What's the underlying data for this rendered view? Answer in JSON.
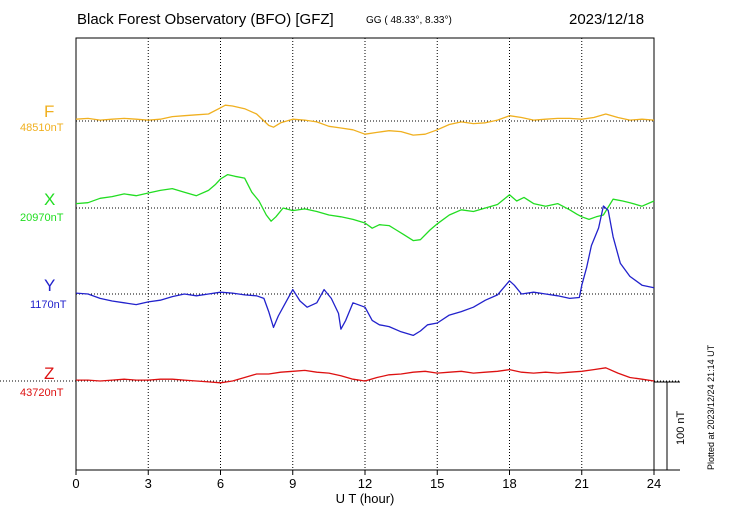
{
  "header": {
    "title": "Black Forest Observatory (BFO)  [GFZ]",
    "coords": "GG ( 48.33°,   8.33°)",
    "date": "2023/12/18"
  },
  "plotted_note": "Plotted at 2023/12/24 21:14 UT",
  "chart_data": {
    "type": "line",
    "xlabel": "U T (hour)",
    "xlim": [
      0,
      24
    ],
    "x_ticks": [
      0,
      3,
      6,
      9,
      12,
      15,
      18,
      21,
      24
    ],
    "x_tick_labels": [
      "0",
      "3",
      "6",
      "9",
      "12",
      "15",
      "18",
      "21",
      "24"
    ],
    "scale_bar_label": "100 nT",
    "scale_bar_nT": 100,
    "grid": true,
    "series": [
      {
        "name": "F",
        "baseline_label": "48510nT",
        "baseline_nT": 48510,
        "color": "#f0b020",
        "x": [
          0,
          0.5,
          1,
          1.5,
          2,
          2.5,
          3,
          3.5,
          4,
          4.5,
          5,
          5.5,
          6,
          6.2,
          6.5,
          7,
          7.5,
          8,
          8.2,
          8.5,
          9,
          9.5,
          10,
          10.5,
          11,
          11.5,
          12,
          12.5,
          13,
          13.5,
          14,
          14.5,
          15,
          15.5,
          16,
          16.5,
          17,
          17.5,
          18,
          18.5,
          19,
          19.5,
          20,
          20.5,
          21,
          21.5,
          22,
          22.5,
          23,
          23.5,
          24
        ],
        "y": [
          48512,
          48513,
          48511,
          48512,
          48513,
          48512,
          48511,
          48512,
          48515,
          48516,
          48517,
          48518,
          48525,
          48528,
          48527,
          48524,
          48518,
          48505,
          48503,
          48508,
          48512,
          48511,
          48509,
          48504,
          48502,
          48500,
          48495,
          48497,
          48499,
          48498,
          48494,
          48495,
          48500,
          48506,
          48509,
          48507,
          48508,
          48511,
          48516,
          48514,
          48511,
          48512,
          48513,
          48513,
          48512,
          48514,
          48518,
          48514,
          48511,
          48512,
          48511
        ]
      },
      {
        "name": "X",
        "baseline_label": "20970nT",
        "baseline_nT": 20970,
        "color": "#22dd22",
        "x": [
          0,
          0.5,
          1,
          1.5,
          2,
          2.5,
          3,
          3.5,
          4,
          4.5,
          5,
          5.5,
          5.8,
          6,
          6.3,
          6.6,
          7,
          7.3,
          7.6,
          7.9,
          8.1,
          8.3,
          8.6,
          9,
          9.5,
          10,
          10.5,
          11,
          11.5,
          12,
          12.3,
          12.6,
          13,
          13.3,
          13.6,
          14,
          14.3,
          14.7,
          15,
          15.5,
          16,
          16.5,
          17,
          17.5,
          18,
          18.3,
          18.6,
          19,
          19.5,
          20,
          20.5,
          20.8,
          21,
          21.3,
          21.6,
          21.9,
          22.3,
          22.7,
          23,
          23.5,
          24
        ],
        "y": [
          20975,
          20976,
          20981,
          20983,
          20986,
          20984,
          20987,
          20990,
          20992,
          20988,
          20984,
          20990,
          20997,
          21003,
          21008,
          21006,
          21004,
          20988,
          20978,
          20962,
          20955,
          20960,
          20970,
          20967,
          20969,
          20966,
          20962,
          20960,
          20957,
          20953,
          20947,
          20951,
          20950,
          20945,
          20940,
          20933,
          20934,
          20945,
          20952,
          20962,
          20968,
          20966,
          20970,
          20974,
          20985,
          20978,
          20982,
          20975,
          20972,
          20975,
          20968,
          20963,
          20960,
          20957,
          20960,
          20962,
          20980,
          20978,
          20976,
          20972,
          20978
        ]
      },
      {
        "name": "Y",
        "baseline_label": "1170nT",
        "baseline_nT": 1170,
        "color": "#2222cc",
        "x": [
          0,
          0.5,
          1,
          1.5,
          2,
          2.5,
          3,
          3.5,
          4,
          4.5,
          5,
          5.5,
          6,
          6.5,
          7,
          7.5,
          7.8,
          8,
          8.2,
          8.4,
          8.7,
          9,
          9.3,
          9.6,
          10,
          10.3,
          10.6,
          10.9,
          11,
          11.2,
          11.5,
          12,
          12.3,
          12.6,
          13,
          13.5,
          14,
          14.3,
          14.6,
          15,
          15.5,
          16,
          16.5,
          17,
          17.5,
          18,
          18.2,
          18.5,
          19,
          19.5,
          20,
          20.5,
          20.9,
          21,
          21.2,
          21.4,
          21.7,
          21.9,
          22.1,
          22.3,
          22.6,
          23,
          23.5,
          24
        ],
        "y": [
          1171,
          1170,
          1165,
          1162,
          1160,
          1158,
          1161,
          1163,
          1167,
          1170,
          1168,
          1170,
          1172,
          1171,
          1169,
          1168,
          1165,
          1150,
          1132,
          1145,
          1160,
          1175,
          1162,
          1155,
          1160,
          1175,
          1165,
          1148,
          1130,
          1140,
          1160,
          1155,
          1140,
          1135,
          1133,
          1127,
          1123,
          1128,
          1135,
          1137,
          1146,
          1150,
          1155,
          1163,
          1169,
          1185,
          1180,
          1170,
          1172,
          1170,
          1168,
          1165,
          1166,
          1180,
          1200,
          1225,
          1245,
          1270,
          1265,
          1235,
          1205,
          1190,
          1180,
          1177
        ]
      },
      {
        "name": "Z",
        "baseline_label": "43720nT",
        "baseline_nT": 43720,
        "color": "#dd1111",
        "x": [
          0,
          0.5,
          1,
          1.5,
          2,
          2.5,
          3,
          3.5,
          4,
          4.5,
          5,
          5.5,
          6,
          6.5,
          7,
          7.5,
          8,
          8.5,
          9,
          9.5,
          10,
          10.5,
          11,
          11.5,
          12,
          12.5,
          13,
          13.5,
          14,
          14.5,
          15,
          15.5,
          16,
          16.5,
          17,
          17.5,
          18,
          18.5,
          19,
          19.5,
          20,
          20.5,
          21,
          21.5,
          22,
          22.5,
          23,
          23.5,
          24
        ],
        "y": [
          43721,
          43721,
          43720,
          43721,
          43722,
          43721,
          43721,
          43722,
          43722,
          43721,
          43720,
          43719,
          43718,
          43720,
          43724,
          43728,
          43728,
          43730,
          43731,
          43732,
          43730,
          43729,
          43726,
          43722,
          43720,
          43724,
          43727,
          43728,
          43730,
          43731,
          43729,
          43730,
          43731,
          43729,
          43730,
          43731,
          43733,
          43730,
          43729,
          43730,
          43729,
          43730,
          43731,
          43733,
          43735,
          43729,
          43724,
          43722,
          43720
        ]
      }
    ]
  }
}
